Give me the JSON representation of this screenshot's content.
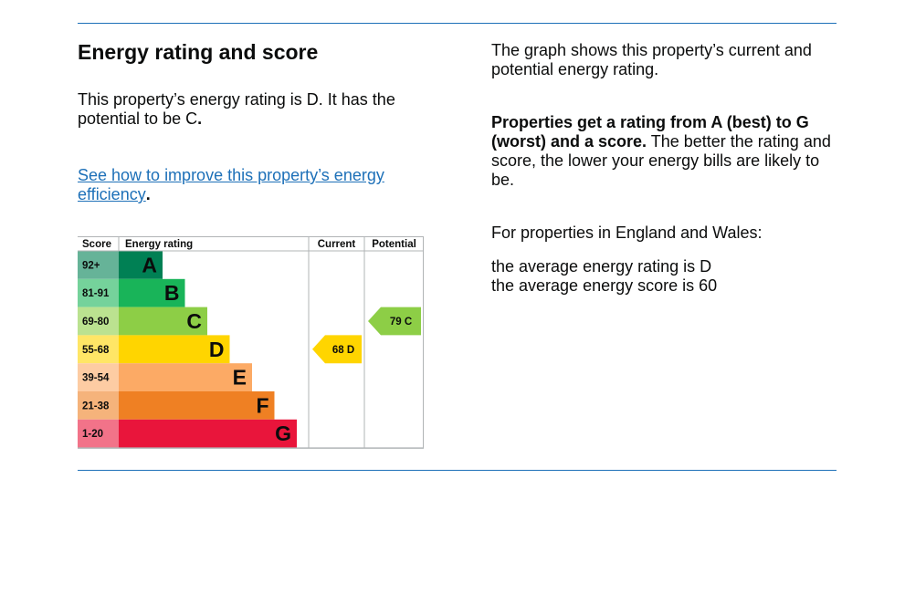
{
  "section": {
    "title": "Energy rating and score",
    "rating_text_before": "This property’s energy rating is D. It has the potential to be C",
    "rating_text_after": ".",
    "improve_link": "See how to improve this property’s energy efficiency",
    "improve_link_after": "."
  },
  "explanation": {
    "graph_text": "The graph shows this property’s current and potential energy rating.",
    "scale_bold": "Properties get a rating from A (best) to G (worst) and a score.",
    "scale_rest": " The better the rating and score, the lower your energy bills are likely to be.",
    "region_intro": "For properties in England and Wales:",
    "average_rating": "the average energy rating is D",
    "average_score": "the average energy score is 60"
  },
  "chart_data": {
    "type": "table",
    "headers": {
      "score": "Score",
      "rating": "Energy rating",
      "current": "Current",
      "potential": "Potential"
    },
    "bands": [
      {
        "range": "92+",
        "letter": "A",
        "color": "#008054",
        "range_color": "#66b398"
      },
      {
        "range": "81-91",
        "letter": "B",
        "color": "#19b459",
        "range_color": "#75d29b"
      },
      {
        "range": "69-80",
        "letter": "C",
        "color": "#8dce46",
        "range_color": "#bbe290"
      },
      {
        "range": "55-68",
        "letter": "D",
        "color": "#ffd500",
        "range_color": "#ffe666"
      },
      {
        "range": "39-54",
        "letter": "E",
        "color": "#fcaa65",
        "range_color": "#fdcca3"
      },
      {
        "range": "21-38",
        "letter": "F",
        "color": "#ef8023",
        "range_color": "#f5b37b"
      },
      {
        "range": "1-20",
        "letter": "G",
        "color": "#e9153b",
        "range_color": "#f27389"
      }
    ],
    "current": {
      "score": 68,
      "letter": "D",
      "label": "68  D",
      "color": "#ffd500"
    },
    "potential": {
      "score": 79,
      "letter": "C",
      "label": "79  C",
      "color": "#8dce46"
    }
  }
}
